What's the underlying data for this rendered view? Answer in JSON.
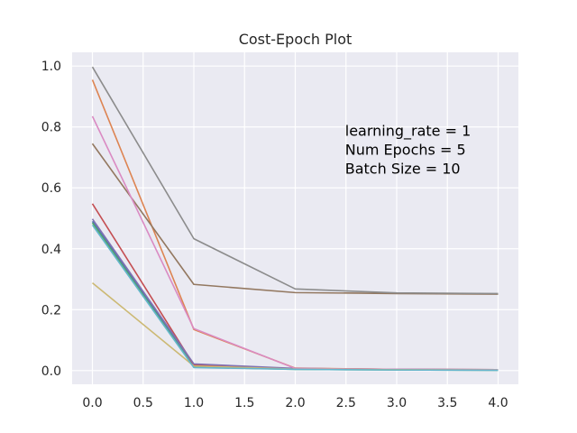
{
  "chart_data": {
    "type": "line",
    "title": "Cost-Epoch Plot",
    "xlabel": "",
    "ylabel": "",
    "x": [
      0,
      1,
      2,
      3,
      4
    ],
    "xlim": [
      -0.2,
      4.2
    ],
    "ylim": [
      -0.045,
      1.045
    ],
    "xticks": [
      "0.0",
      "0.5",
      "1.0",
      "1.5",
      "2.0",
      "2.5",
      "3.0",
      "3.5",
      "4.0"
    ],
    "xtick_values": [
      0,
      0.5,
      1,
      1.5,
      2,
      2.5,
      3,
      3.5,
      4
    ],
    "yticks": [
      "0.0",
      "0.2",
      "0.4",
      "0.6",
      "0.8",
      "1.0"
    ],
    "ytick_values": [
      0,
      0.2,
      0.4,
      0.6,
      0.8,
      1.0
    ],
    "grid": true,
    "annotation": [
      "learning_rate = 1",
      "Num Epochs = 5",
      "Batch Size = 10"
    ],
    "annotation_anchor": [
      2.5,
      0.8
    ],
    "colors": {
      "background": "#eaeaf2",
      "grid": "#ffffff",
      "text": "#262626",
      "series": [
        "#4c72b0",
        "#dd8452",
        "#55a868",
        "#c44e52",
        "#8172b3",
        "#937860",
        "#da8bc3",
        "#8c8c8c",
        "#ccb974",
        "#64b5cd"
      ]
    },
    "series": [
      {
        "values": [
          0.49,
          0.02,
          0.005,
          0.003,
          0.002
        ]
      },
      {
        "values": [
          0.955,
          0.135,
          0.008,
          0.004,
          0.003
        ]
      },
      {
        "values": [
          0.485,
          0.012,
          0.004,
          0.002,
          0.001
        ]
      },
      {
        "values": [
          0.548,
          0.018,
          0.006,
          0.004,
          0.003
        ]
      },
      {
        "values": [
          0.498,
          0.022,
          0.007,
          0.004,
          0.003
        ]
      },
      {
        "values": [
          0.745,
          0.283,
          0.256,
          0.253,
          0.251
        ]
      },
      {
        "values": [
          0.835,
          0.138,
          0.007,
          0.004,
          0.003
        ]
      },
      {
        "values": [
          0.997,
          0.433,
          0.268,
          0.255,
          0.253
        ]
      },
      {
        "values": [
          0.288,
          0.015,
          0.005,
          0.003,
          0.002
        ]
      },
      {
        "values": [
          0.478,
          0.01,
          0.004,
          0.002,
          0.001
        ]
      }
    ]
  }
}
